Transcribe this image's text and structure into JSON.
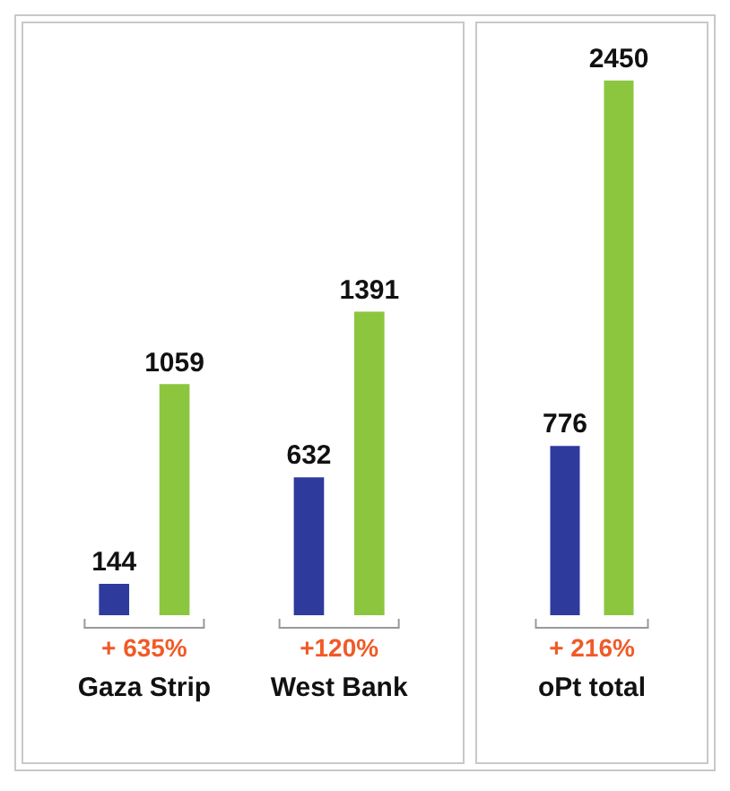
{
  "chart_data": [
    {
      "type": "bar",
      "categories": [
        "Gaza Strip",
        "West Bank"
      ],
      "series": [
        {
          "color": "#2e3a9c",
          "values": [
            144,
            632
          ]
        },
        {
          "color": "#8cc63f",
          "values": [
            1059,
            1391
          ]
        }
      ],
      "data_labels": true,
      "grid": false,
      "legend": false,
      "tick_labels": "x",
      "annotations": [
        "+ 635%",
        "+120%"
      ]
    },
    {
      "type": "bar",
      "categories": [
        "oPt total"
      ],
      "series": [
        {
          "color": "#2e3a9c",
          "values": [
            776
          ]
        },
        {
          "color": "#8cc63f",
          "values": [
            2450
          ]
        }
      ],
      "data_labels": true,
      "grid": false,
      "legend": false,
      "tick_labels": "x",
      "annotations": [
        "+ 216%"
      ]
    }
  ]
}
